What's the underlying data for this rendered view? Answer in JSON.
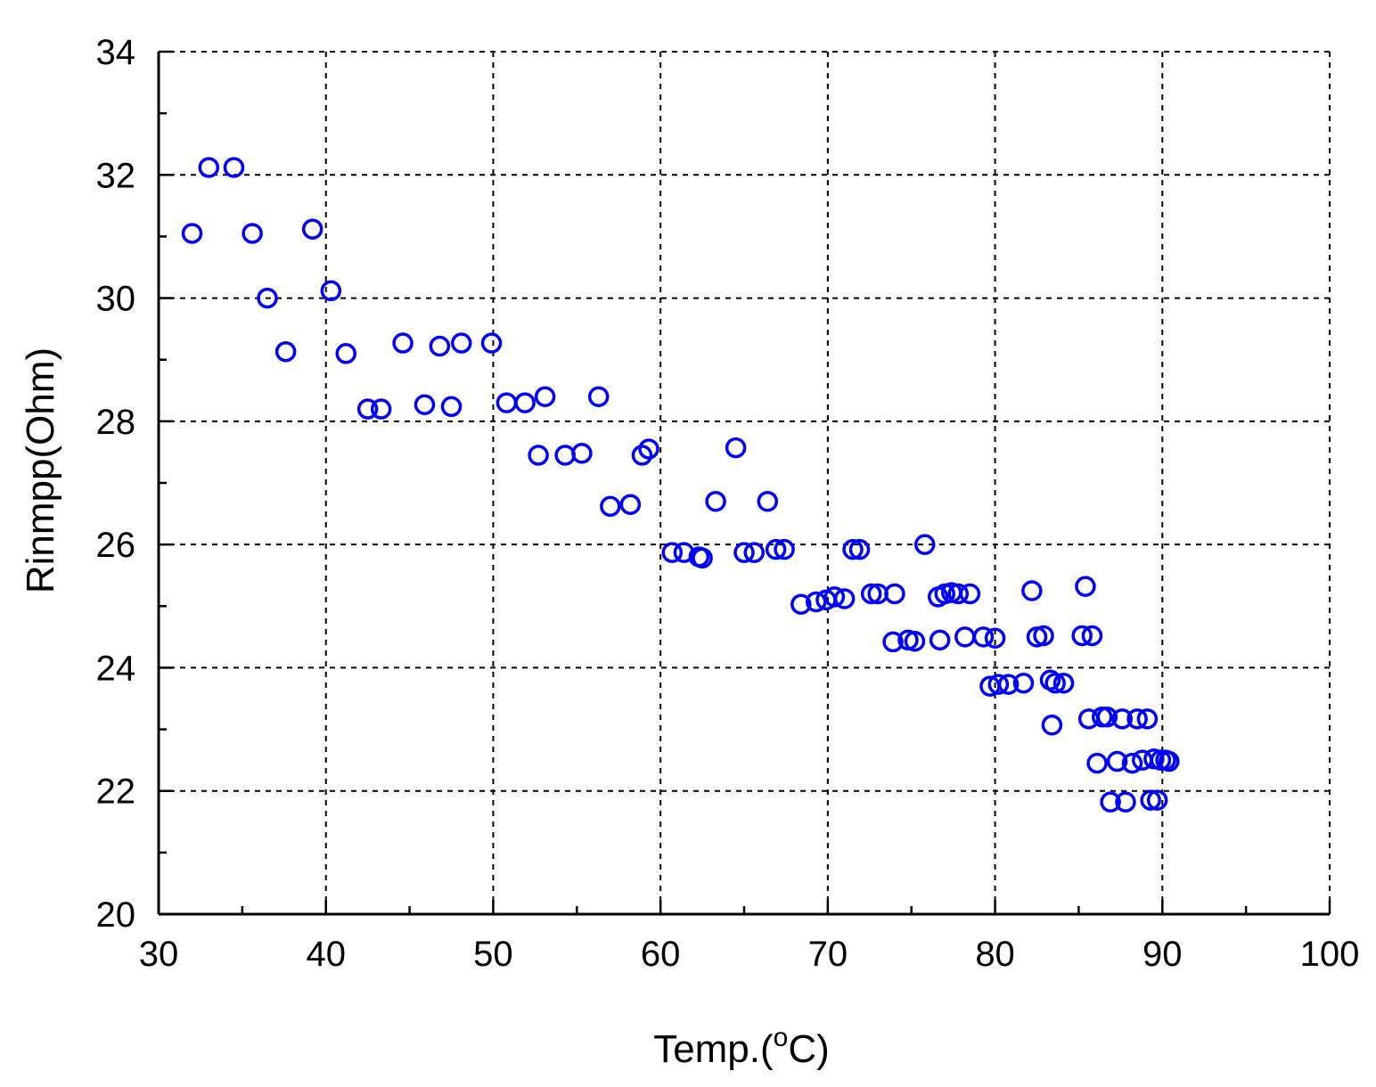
{
  "chart_data": {
    "type": "scatter",
    "title": "",
    "xlabel": "Temp.(",
    "xlabel_sup": "o",
    "xlabel_suffix": "C)",
    "ylabel": "Rinmpp(Ohm)",
    "xlim": [
      30,
      100
    ],
    "ylim": [
      20,
      34
    ],
    "x_ticks": [
      "30",
      "40",
      "50",
      "60",
      "70",
      "80",
      "90",
      "100"
    ],
    "y_ticks": [
      "20",
      "22",
      "24",
      "26",
      "28",
      "30",
      "32",
      "34"
    ],
    "x_tick_values": [
      30,
      40,
      50,
      60,
      70,
      80,
      90,
      100
    ],
    "y_tick_values": [
      20,
      22,
      24,
      26,
      28,
      30,
      32,
      34
    ],
    "x_minor_step": 5,
    "y_minor_step": 1,
    "grid": true,
    "legend": "none",
    "marker": "open-circle",
    "marker_color": "#0000ff",
    "series": [
      {
        "x": [
          32.0,
          33.0,
          34.5,
          35.6,
          36.5,
          37.6,
          39.2,
          40.3,
          41.2,
          42.5,
          43.3,
          44.6,
          45.9,
          46.8,
          47.5,
          48.1,
          49.9,
          50.8,
          51.9,
          52.7,
          53.1,
          54.3,
          55.3,
          56.3,
          57.0,
          58.2,
          58.9,
          59.3,
          60.7,
          61.4,
          62.3,
          62.5,
          63.3,
          64.5,
          65.0,
          65.6,
          66.4,
          66.9,
          67.4,
          68.4,
          69.3,
          69.9,
          70.4,
          71.0,
          71.5,
          71.9,
          72.6,
          73.0,
          73.9,
          74.0,
          74.8,
          75.2,
          75.8,
          76.6,
          76.7,
          77.0,
          77.4,
          77.8,
          78.2,
          78.5,
          79.3,
          79.7,
          80.0,
          80.2,
          80.8,
          81.7,
          82.2,
          82.5,
          82.9,
          83.3,
          83.4,
          83.6,
          84.1,
          85.2,
          85.4,
          85.6,
          85.8,
          86.1,
          86.4,
          86.7,
          86.9,
          87.3,
          87.6,
          87.8,
          88.2,
          88.5,
          88.8,
          89.1,
          89.3,
          89.5,
          89.7,
          89.9,
          90.2,
          90.4
        ],
        "y": [
          31.05,
          32.12,
          32.12,
          31.05,
          30.0,
          29.13,
          31.12,
          30.12,
          29.1,
          28.2,
          28.2,
          29.27,
          28.27,
          29.22,
          28.24,
          29.27,
          29.27,
          28.3,
          28.3,
          27.45,
          28.4,
          27.45,
          27.48,
          28.4,
          26.62,
          26.65,
          27.45,
          27.55,
          25.87,
          25.87,
          25.8,
          25.78,
          26.7,
          27.57,
          25.87,
          25.87,
          26.7,
          25.92,
          25.92,
          25.03,
          25.07,
          25.1,
          25.15,
          25.12,
          25.92,
          25.92,
          25.2,
          25.2,
          24.42,
          25.2,
          24.45,
          24.43,
          26.0,
          25.15,
          24.45,
          25.2,
          25.22,
          25.2,
          24.5,
          25.2,
          24.5,
          23.7,
          24.48,
          23.73,
          23.73,
          23.75,
          25.25,
          24.5,
          24.52,
          23.8,
          23.07,
          23.75,
          23.75,
          24.52,
          25.32,
          23.17,
          24.52,
          22.45,
          23.2,
          23.2,
          21.82,
          22.48,
          23.17,
          21.82,
          22.45,
          23.17,
          22.5,
          23.17,
          21.85,
          22.52,
          21.85,
          22.5,
          22.5,
          22.48
        ]
      }
    ]
  }
}
